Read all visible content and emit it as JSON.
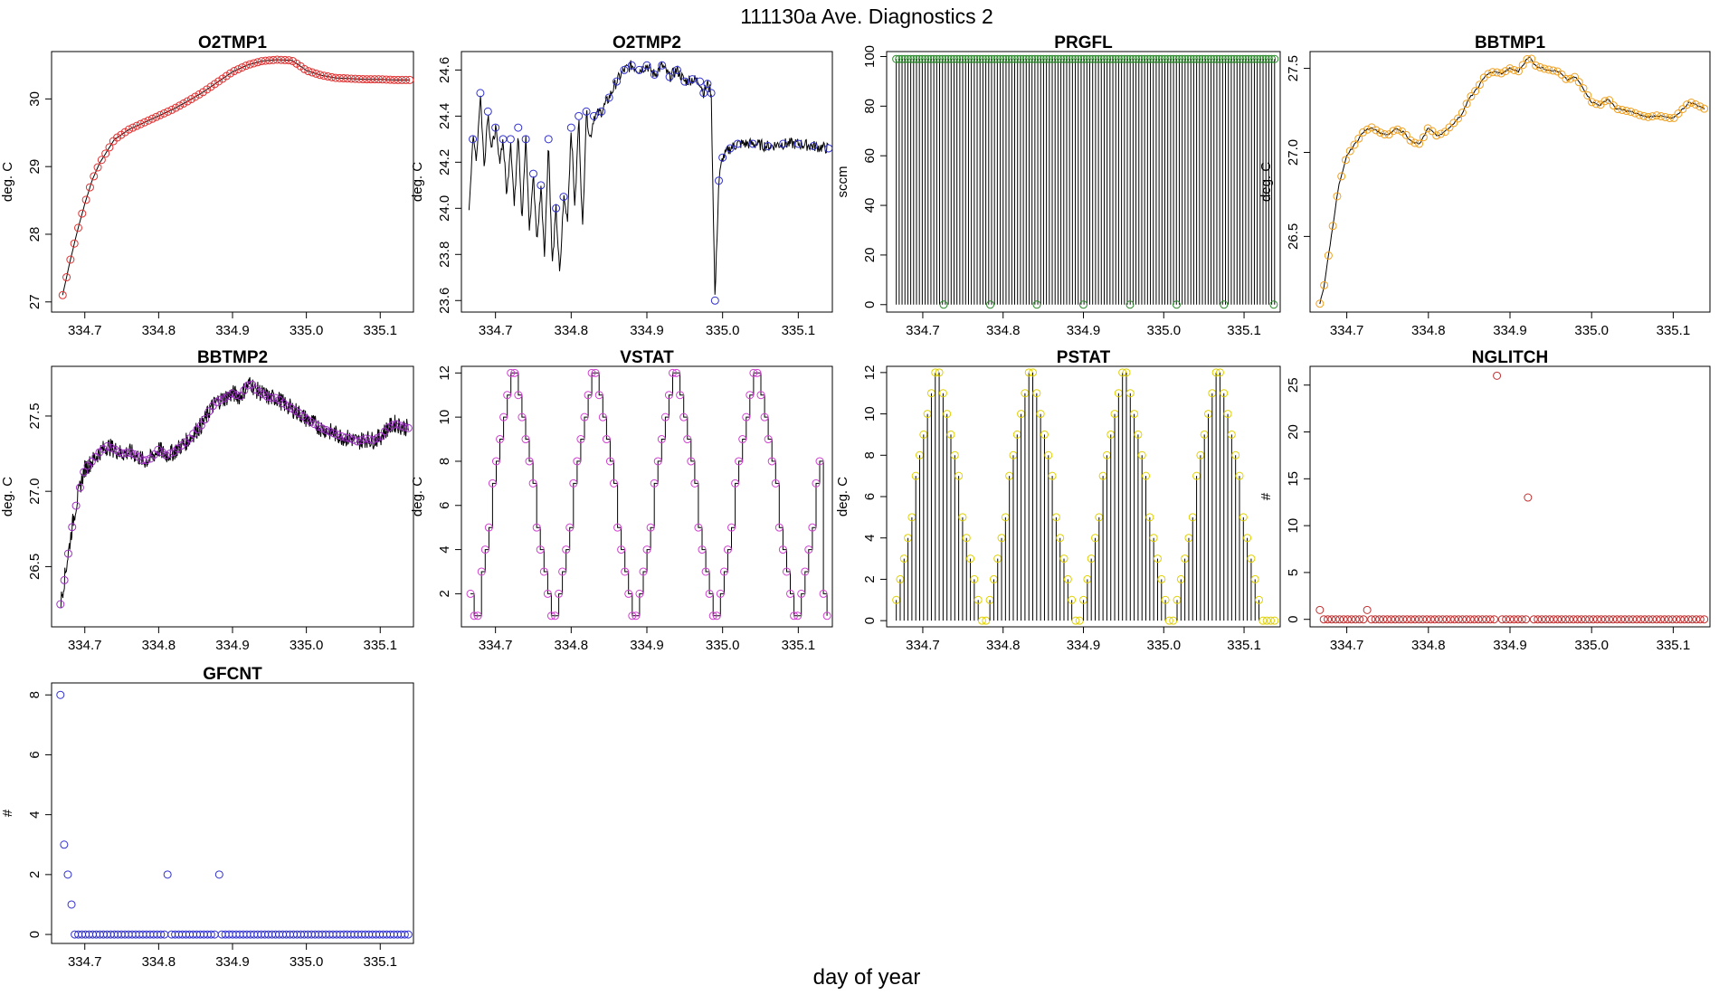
{
  "figure": {
    "title": "111130a   Ave. Diagnostics 2",
    "xlabel": "day of year",
    "xticks": [
      "334.7",
      "334.8",
      "334.9",
      "335.0",
      "335.1"
    ]
  },
  "chart_data": [
    {
      "id": "o2tmp1",
      "type": "line",
      "title": "O2TMP1",
      "ylabel": "deg. C",
      "xlim": [
        334.655,
        335.145
      ],
      "ylim": [
        26.85,
        30.7
      ],
      "yticks": [
        "27",
        "28",
        "29",
        "30"
      ],
      "marker_color": "#e03030",
      "x": [
        334.67,
        334.68,
        334.69,
        334.7,
        334.71,
        334.72,
        334.74,
        334.76,
        334.78,
        334.8,
        334.82,
        334.84,
        334.86,
        334.88,
        334.9,
        334.92,
        334.94,
        334.96,
        334.98,
        334.99,
        335.0,
        335.02,
        335.04,
        335.06,
        335.08,
        335.1,
        335.12,
        335.14
      ],
      "y": [
        27.1,
        27.6,
        28.05,
        28.45,
        28.8,
        29.05,
        29.4,
        29.55,
        29.65,
        29.75,
        29.85,
        29.97,
        30.1,
        30.25,
        30.4,
        30.5,
        30.56,
        30.58,
        30.57,
        30.5,
        30.42,
        30.35,
        30.31,
        30.3,
        30.29,
        30.29,
        30.28,
        30.28
      ]
    },
    {
      "id": "o2tmp2",
      "type": "line",
      "title": "O2TMP2",
      "ylabel": "deg. C",
      "xlim": [
        334.655,
        335.145
      ],
      "ylim": [
        23.55,
        24.68
      ],
      "yticks": [
        "23.6",
        "23.8",
        "24.0",
        "24.2",
        "24.4",
        "24.6"
      ],
      "marker_color": "#3030d0",
      "x": [
        334.665,
        334.67,
        334.675,
        334.68,
        334.685,
        334.69,
        334.695,
        334.7,
        334.705,
        334.71,
        334.715,
        334.72,
        334.725,
        334.73,
        334.735,
        334.74,
        334.745,
        334.75,
        334.755,
        334.76,
        334.765,
        334.77,
        334.775,
        334.78,
        334.785,
        334.79,
        334.795,
        334.8,
        334.805,
        334.81,
        334.815,
        334.82,
        334.825,
        334.83,
        334.84,
        334.85,
        334.86,
        334.87,
        334.88,
        334.89,
        334.9,
        334.91,
        334.92,
        334.93,
        334.94,
        334.95,
        334.96,
        334.97,
        334.975,
        334.98,
        334.985,
        334.99,
        334.995,
        335.0,
        335.01,
        335.02,
        335.04,
        335.06,
        335.08,
        335.1,
        335.12,
        335.14
      ],
      "y": [
        24.0,
        24.3,
        24.22,
        24.5,
        24.18,
        24.42,
        24.25,
        24.35,
        24.2,
        24.3,
        24.05,
        24.3,
        24.0,
        24.35,
        23.95,
        24.3,
        23.9,
        24.15,
        23.85,
        24.1,
        23.8,
        24.3,
        23.75,
        24.0,
        23.7,
        24.05,
        23.95,
        24.35,
        24.0,
        24.4,
        23.9,
        24.42,
        24.3,
        24.4,
        24.42,
        24.48,
        24.55,
        24.6,
        24.62,
        24.6,
        24.62,
        24.58,
        24.62,
        24.57,
        24.6,
        24.55,
        24.56,
        24.55,
        24.5,
        24.54,
        24.5,
        23.6,
        24.12,
        24.22,
        24.26,
        24.28,
        24.28,
        24.27,
        24.28,
        24.28,
        24.27,
        24.26
      ]
    },
    {
      "id": "prgfl",
      "type": "spikes",
      "title": "PRGFL",
      "ylabel": "sccm",
      "xlim": [
        334.655,
        335.145
      ],
      "ylim": [
        -3,
        102
      ],
      "yticks": [
        "0",
        "20",
        "40",
        "60",
        "80",
        "100"
      ],
      "marker_color": "#2e8b2e",
      "x_start": 334.667,
      "x_end": 335.138,
      "n": 132,
      "high": 99,
      "low": 0,
      "zeros_at": [
        334.726,
        334.784,
        334.842,
        334.9,
        334.958,
        335.016,
        335.075,
        335.137
      ]
    },
    {
      "id": "bbtmp1",
      "type": "line",
      "title": "BBTMP1",
      "ylabel": "deg. C",
      "xlim": [
        334.655,
        335.145
      ],
      "ylim": [
        26.05,
        27.6
      ],
      "yticks": [
        "26.5",
        "27.0",
        "27.5"
      ],
      "marker_color": "#f0a020",
      "x": [
        334.667,
        334.672,
        334.678,
        334.684,
        334.69,
        334.696,
        334.7,
        334.71,
        334.72,
        334.73,
        334.74,
        334.75,
        334.76,
        334.77,
        334.78,
        334.79,
        334.8,
        334.81,
        334.82,
        334.83,
        334.84,
        334.85,
        334.86,
        334.87,
        334.88,
        334.89,
        334.9,
        334.91,
        334.92,
        334.925,
        334.93,
        334.94,
        334.95,
        334.96,
        334.97,
        334.98,
        334.99,
        335.0,
        335.01,
        335.02,
        335.03,
        335.04,
        335.05,
        335.06,
        335.07,
        335.08,
        335.09,
        335.1,
        335.11,
        335.12,
        335.13,
        335.138
      ],
      "y": [
        26.1,
        26.2,
        26.4,
        26.6,
        26.8,
        26.9,
        26.98,
        27.05,
        27.12,
        27.15,
        27.12,
        27.1,
        27.14,
        27.12,
        27.06,
        27.05,
        27.15,
        27.1,
        27.12,
        27.17,
        27.22,
        27.32,
        27.38,
        27.46,
        27.48,
        27.47,
        27.5,
        27.48,
        27.55,
        27.57,
        27.52,
        27.5,
        27.49,
        27.48,
        27.43,
        27.45,
        27.38,
        27.3,
        27.28,
        27.32,
        27.26,
        27.25,
        27.24,
        27.22,
        27.21,
        27.22,
        27.21,
        27.2,
        27.25,
        27.3,
        27.28,
        27.26
      ]
    },
    {
      "id": "bbtmp2",
      "type": "line",
      "title": "BBTMP2",
      "ylabel": "deg. C",
      "xlim": [
        334.655,
        335.145
      ],
      "ylim": [
        26.1,
        27.83
      ],
      "yticks": [
        "26.5",
        "27.0",
        "27.5"
      ],
      "marker_color": "#9a30c0",
      "noisy": true,
      "x": [
        334.667,
        334.672,
        334.678,
        334.684,
        334.69,
        334.696,
        334.7,
        334.71,
        334.72,
        334.73,
        334.74,
        334.75,
        334.76,
        334.77,
        334.78,
        334.79,
        334.8,
        334.81,
        334.82,
        334.83,
        334.84,
        334.85,
        334.86,
        334.87,
        334.88,
        334.89,
        334.9,
        334.91,
        334.92,
        334.925,
        334.93,
        334.94,
        334.95,
        334.96,
        334.97,
        334.98,
        334.99,
        335.0,
        335.01,
        335.02,
        335.03,
        335.04,
        335.05,
        335.06,
        335.07,
        335.08,
        335.09,
        335.1,
        335.11,
        335.12,
        335.13,
        335.138
      ],
      "y": [
        26.25,
        26.4,
        26.6,
        26.8,
        26.95,
        27.08,
        27.15,
        27.2,
        27.26,
        27.3,
        27.28,
        27.25,
        27.26,
        27.24,
        27.2,
        27.22,
        27.28,
        27.24,
        27.26,
        27.3,
        27.34,
        27.4,
        27.45,
        27.55,
        27.6,
        27.62,
        27.65,
        27.63,
        27.7,
        27.72,
        27.68,
        27.65,
        27.62,
        27.62,
        27.58,
        27.55,
        27.52,
        27.48,
        27.45,
        27.42,
        27.4,
        27.38,
        27.36,
        27.35,
        27.33,
        27.35,
        27.34,
        27.36,
        27.42,
        27.45,
        27.43,
        27.42
      ]
    },
    {
      "id": "vstat",
      "type": "step",
      "title": "VSTAT",
      "ylabel": "deg. C",
      "xlim": [
        334.655,
        335.145
      ],
      "ylim": [
        0.5,
        12.3
      ],
      "yticks": [
        "2",
        "4",
        "6",
        "8",
        "10",
        "12"
      ],
      "marker_color": "#d040d0",
      "x_start": 334.667,
      "x_end": 335.138,
      "n": 98,
      "pattern": [
        2,
        1,
        1,
        3,
        4,
        5,
        7,
        8,
        9,
        10,
        11,
        12,
        12,
        11,
        10,
        9,
        8,
        7,
        5,
        4,
        3,
        2,
        1,
        1,
        2,
        3,
        4,
        5,
        7,
        8,
        9,
        10,
        11,
        12,
        12,
        11,
        10,
        9,
        8,
        7,
        5,
        4,
        3,
        2,
        1,
        1,
        2,
        3,
        4,
        5,
        7,
        8,
        9,
        10,
        11,
        12,
        12,
        11,
        10,
        9,
        8,
        7,
        5,
        4,
        3,
        2,
        1,
        1,
        2,
        3,
        4,
        5,
        7,
        8,
        9,
        10,
        11,
        12,
        12,
        11,
        10,
        9,
        8,
        7,
        5,
        4,
        3,
        2,
        1,
        1,
        2,
        3,
        4,
        5,
        7,
        8,
        2,
        1
      ]
    },
    {
      "id": "pstat",
      "type": "spikes",
      "title": "PSTAT",
      "ylabel": "deg. C",
      "xlim": [
        334.655,
        335.145
      ],
      "ylim": [
        -0.3,
        12.3
      ],
      "yticks": [
        "0",
        "2",
        "4",
        "6",
        "8",
        "10",
        "12"
      ],
      "marker_color": "#e0d000",
      "x_start": 334.667,
      "x_end": 335.138,
      "n": 98,
      "pattern": [
        1,
        2,
        3,
        4,
        5,
        7,
        8,
        9,
        10,
        11,
        12,
        12,
        11,
        10,
        9,
        8,
        7,
        5,
        4,
        3,
        2,
        1,
        0,
        0,
        1,
        2,
        3,
        4,
        5,
        7,
        8,
        9,
        10,
        11,
        12,
        12,
        11,
        10,
        9,
        8,
        7,
        5,
        4,
        3,
        2,
        1,
        0,
        0,
        1,
        2,
        3,
        4,
        5,
        7,
        8,
        9,
        10,
        11,
        12,
        12,
        11,
        10,
        9,
        8,
        7,
        5,
        4,
        3,
        2,
        1,
        0,
        0,
        1,
        2,
        3,
        4,
        5,
        7,
        8,
        9,
        10,
        11,
        12,
        12,
        11,
        10,
        9,
        8,
        7,
        5,
        4,
        3,
        2,
        1,
        0,
        0,
        0,
        0
      ]
    },
    {
      "id": "nglitch",
      "type": "scatter",
      "title": "NGLITCH",
      "ylabel": "#",
      "xlim": [
        334.655,
        335.145
      ],
      "ylim": [
        -0.8,
        27
      ],
      "yticks": [
        "0",
        "5",
        "10",
        "15",
        "20",
        "25"
      ],
      "marker_color": "#c03030",
      "x_start": 334.667,
      "x_end": 335.138,
      "n": 98,
      "outliers": [
        {
          "x": 334.667,
          "y": 1
        },
        {
          "x": 334.725,
          "y": 1
        },
        {
          "x": 334.884,
          "y": 26
        },
        {
          "x": 334.922,
          "y": 13
        }
      ]
    },
    {
      "id": "gfcnt",
      "type": "scatter",
      "title": "GFCNT",
      "ylabel": "#",
      "xlim": [
        334.655,
        335.145
      ],
      "ylim": [
        -0.3,
        8.4
      ],
      "yticks": [
        "0",
        "2",
        "4",
        "6",
        "8"
      ],
      "marker_color": "#3030d0",
      "x_start": 334.667,
      "x_end": 335.138,
      "n": 98,
      "outliers": [
        {
          "x": 334.667,
          "y": 8
        },
        {
          "x": 334.672,
          "y": 3
        },
        {
          "x": 334.677,
          "y": 2
        },
        {
          "x": 334.682,
          "y": 1
        },
        {
          "x": 334.812,
          "y": 2
        },
        {
          "x": 334.882,
          "y": 2
        }
      ]
    }
  ]
}
